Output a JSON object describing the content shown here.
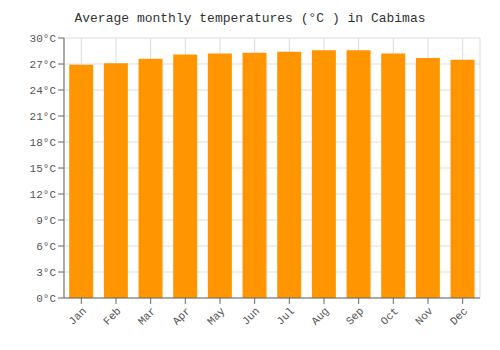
{
  "chart_data": {
    "type": "bar",
    "title": "Average monthly temperatures (°C ) in Cabimas",
    "categories": [
      "Jan",
      "Feb",
      "Mar",
      "Apr",
      "May",
      "Jun",
      "Jul",
      "Aug",
      "Sep",
      "Oct",
      "Nov",
      "Dec"
    ],
    "values": [
      26.9,
      27.1,
      27.6,
      28.1,
      28.2,
      28.3,
      28.4,
      28.6,
      28.6,
      28.2,
      27.7,
      27.5
    ],
    "color": "#FF9500",
    "ylim": [
      0,
      30
    ],
    "yticks": [
      {
        "value": 0,
        "label": "0°C"
      },
      {
        "value": 3,
        "label": "3°C"
      },
      {
        "value": 6,
        "label": "6°C"
      },
      {
        "value": 9,
        "label": "9°C"
      },
      {
        "value": 12,
        "label": "12°C"
      },
      {
        "value": 15,
        "label": "15°C"
      },
      {
        "value": 18,
        "label": "18°C"
      },
      {
        "value": 21,
        "label": "21°C"
      },
      {
        "value": 24,
        "label": "24°C"
      },
      {
        "value": 27,
        "label": "27°C"
      },
      {
        "value": 30,
        "label": "30°C"
      }
    ],
    "grid": true
  }
}
